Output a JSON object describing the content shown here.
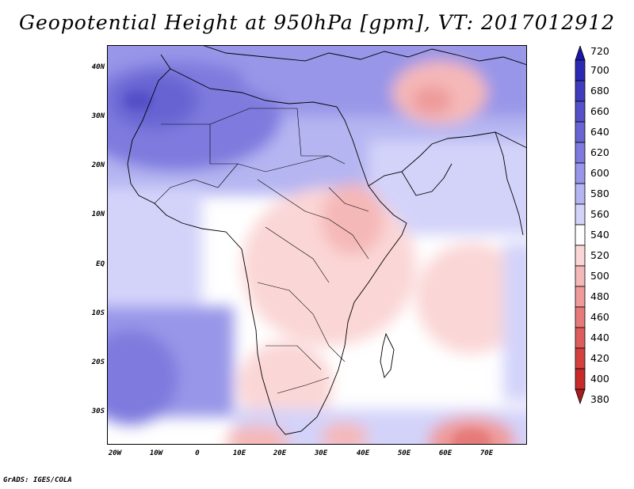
{
  "title": "Geopotential Height at 950hPa [gpm], VT: 2017012912",
  "credit": "GrADS: IGES/COLA",
  "map": {
    "lon_range": [
      -25,
      80
    ],
    "lat_range": [
      -37,
      45
    ],
    "lat_ticks": [
      "40N",
      "30N",
      "20N",
      "10N",
      "EQ",
      "10S",
      "20S",
      "30S"
    ],
    "lon_ticks": [
      "20W",
      "10W",
      "0",
      "10E",
      "20E",
      "30E",
      "40E",
      "50E",
      "60E",
      "70E"
    ]
  },
  "colorbar": {
    "levels": [
      "720",
      "700",
      "680",
      "660",
      "640",
      "620",
      "600",
      "580",
      "560",
      "540",
      "520",
      "500",
      "480",
      "460",
      "440",
      "420",
      "400",
      "380"
    ],
    "colors": [
      "#1a16a8",
      "#2b28b4",
      "#3f3cbe",
      "#5450c8",
      "#6864d2",
      "#7e7ade",
      "#9896e8",
      "#b5b5f2",
      "#d3d3fa",
      "#ffffff",
      "#fbd6d6",
      "#f5b8b8",
      "#ee9a9a",
      "#e67a7a",
      "#de5c5c",
      "#d44040",
      "#c62a2a",
      "#a81c1c"
    ]
  }
}
